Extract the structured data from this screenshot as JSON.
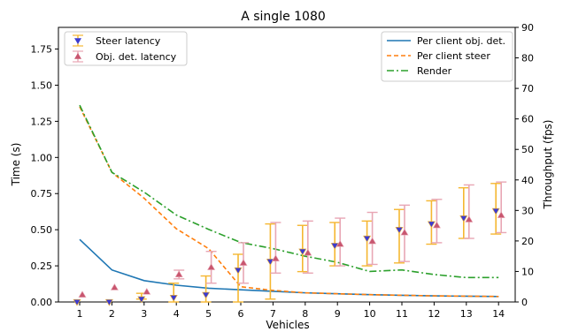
{
  "chart_data": {
    "type": "line",
    "title": "A single 1080",
    "xlabel": "Vehicles",
    "ylabel_left": "Time (s)",
    "ylabel_right": "Throughput (fps)",
    "x": [
      1,
      2,
      3,
      4,
      5,
      6,
      7,
      8,
      9,
      10,
      11,
      12,
      13,
      14
    ],
    "ylim_left": [
      0,
      1.9
    ],
    "ylim_right": [
      0,
      90
    ],
    "yticks_left": [
      "0.00",
      "0.25",
      "0.50",
      "0.75",
      "1.00",
      "1.25",
      "1.50",
      "1.75"
    ],
    "yticks_right": [
      "0",
      "10",
      "20",
      "30",
      "40",
      "50",
      "60",
      "70",
      "80",
      "90"
    ],
    "legend_left": "top-left",
    "legend_right": "top-right",
    "latency_series": [
      {
        "name": "Steer latency",
        "color": "#3b3bd1",
        "err_color": "#f5b731",
        "marker": "triangle-down",
        "values": [
          0.0,
          0.0,
          0.02,
          0.03,
          0.05,
          0.22,
          0.28,
          0.35,
          0.39,
          0.44,
          0.5,
          0.54,
          0.58,
          0.63
        ],
        "err_low": [
          0.0,
          0.0,
          0.0,
          0.03,
          0.05,
          0.22,
          0.26,
          0.14,
          0.14,
          0.19,
          0.23,
          0.14,
          0.14,
          0.16
        ],
        "err_high": [
          0.0,
          0.0,
          0.04,
          0.1,
          0.13,
          0.11,
          0.26,
          0.18,
          0.16,
          0.12,
          0.14,
          0.16,
          0.21,
          0.19
        ]
      },
      {
        "name": "Obj. det. latency",
        "color": "#c8566f",
        "err_color": "#e8a6b4",
        "marker": "triangle-up",
        "values": [
          0.05,
          0.1,
          0.07,
          0.19,
          0.24,
          0.27,
          0.3,
          0.34,
          0.4,
          0.42,
          0.48,
          0.53,
          0.57,
          0.6
        ],
        "err_low": [
          0.0,
          0.0,
          0.0,
          0.03,
          0.11,
          0.14,
          0.1,
          0.14,
          0.15,
          0.16,
          0.2,
          0.12,
          0.13,
          0.12
        ],
        "err_high": [
          0.0,
          0.0,
          0.0,
          0.03,
          0.11,
          0.14,
          0.25,
          0.22,
          0.18,
          0.2,
          0.19,
          0.18,
          0.24,
          0.23
        ]
      }
    ],
    "throughput_series": [
      {
        "name": "Per client obj. det.",
        "color": "#1f77b4",
        "style": "solid",
        "values": [
          20.5,
          10.5,
          7.0,
          5.5,
          4.5,
          4.0,
          3.5,
          3.0,
          2.7,
          2.4,
          2.2,
          2.0,
          1.9,
          1.8
        ]
      },
      {
        "name": "Per client steer",
        "color": "#ff7f0e",
        "style": "dashed",
        "values": [
          64.0,
          42.5,
          34.0,
          24.0,
          17.5,
          5.0,
          3.8,
          3.0,
          2.7,
          2.4,
          2.2,
          2.0,
          1.9,
          1.8
        ]
      },
      {
        "name": "Render",
        "color": "#2ca02c",
        "style": "dashdot",
        "values": [
          64.5,
          42.5,
          36.0,
          28.5,
          23.8,
          19.5,
          17.5,
          15.0,
          13.0,
          10.0,
          10.5,
          9.0,
          8.0,
          8.0
        ]
      }
    ]
  }
}
